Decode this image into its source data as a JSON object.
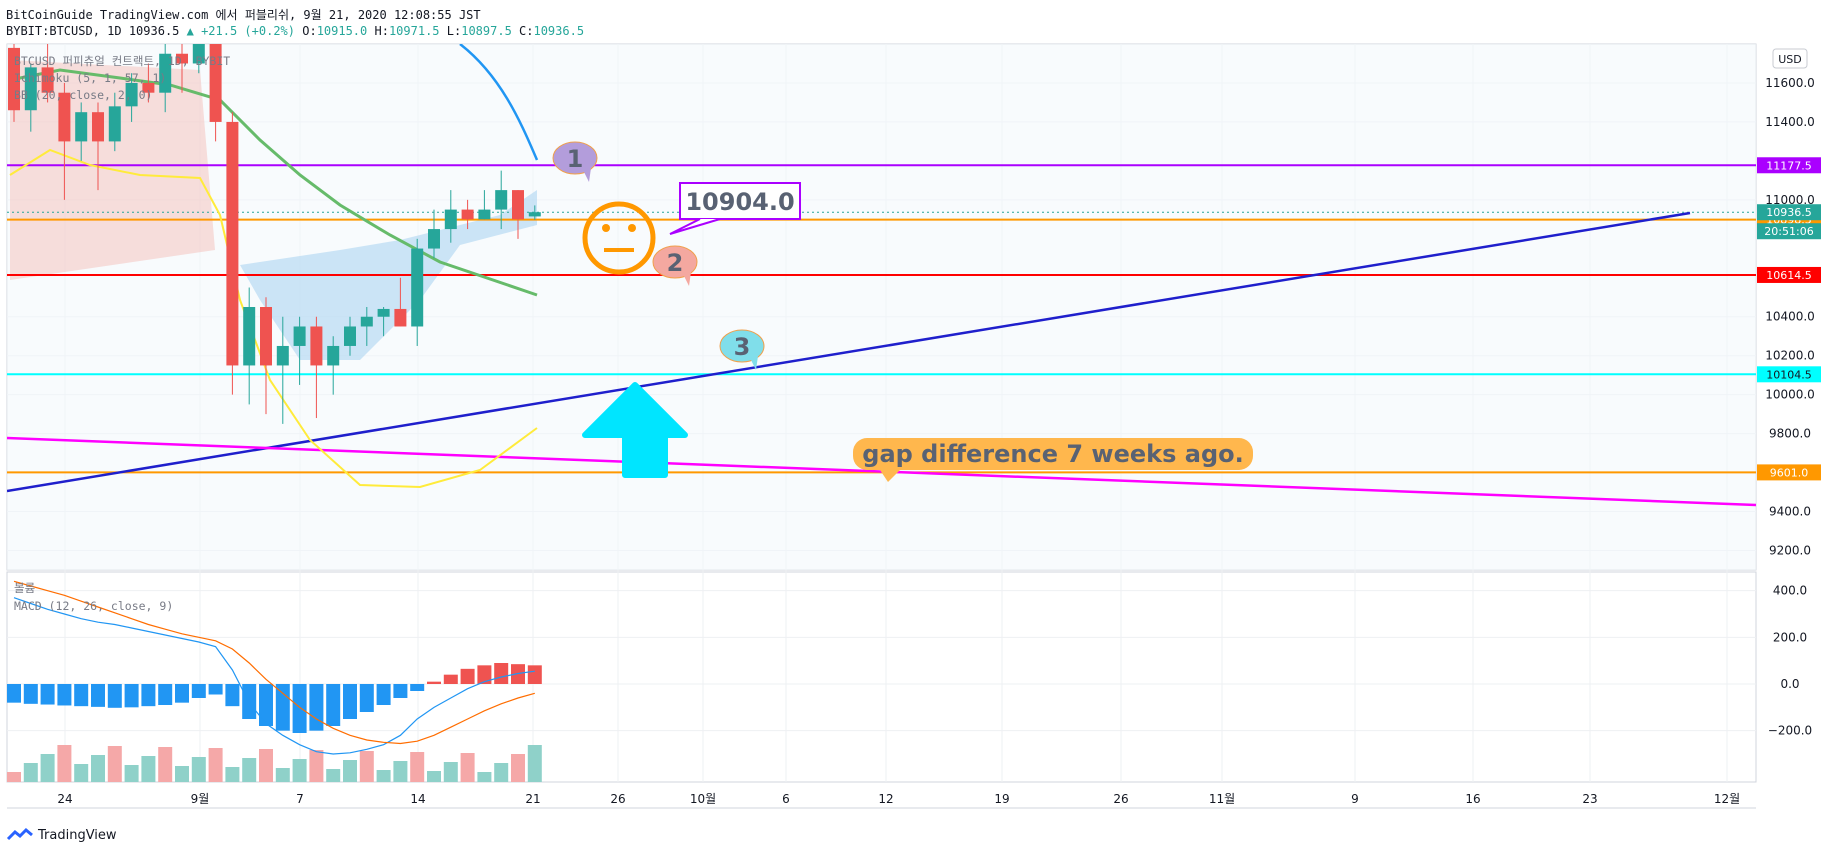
{
  "header": {
    "line1": "BitCoinGuide TradingView.com 에서 퍼블리쉬, 9월 21, 2020 12:08:55 JST",
    "symbol": "BYBIT:BTCUSD, 1D 10936.5",
    "change": "▲ +21.5 (+0.2%)",
    "o_label": "O:",
    "o": "10915.0",
    "h_label": "H:",
    "h": "10971.5",
    "l_label": "L:",
    "l": "10897.5",
    "c_label": "C:",
    "c": "10936.5"
  },
  "indicators": {
    "title": "BTCUSD 퍼피츄얼 컨트랙트, 1D, BYBIT",
    "ichimoku": "Ichimoku (5, 1, 57, 1)",
    "bb": "BB (20, close, 2, 0)",
    "volume": "볼륨",
    "macd": "MACD (12, 26, close, 9)"
  },
  "currency_button": "USD",
  "footer": {
    "brand": "TradingView"
  },
  "colors": {
    "up": "#26a69a",
    "down": "#ef5350",
    "purple_line": "#aa00ff",
    "orange_line": "#ff9800",
    "red_line": "#ff0000",
    "cyan_line": "#00ffff",
    "trend_blue": "#1f1fcc",
    "magenta": "#ff00ff"
  },
  "chart_data": {
    "type": "candlestick",
    "x_ticks": [
      "24",
      "9월",
      "7",
      "14",
      "21",
      "26",
      "10월",
      "6",
      "12",
      "19",
      "26",
      "11월",
      "9",
      "16",
      "23",
      "12월"
    ],
    "y_ticks": [
      9200,
      9400,
      9600,
      9800,
      10000,
      10200,
      10400,
      11000,
      11400,
      11600
    ],
    "y_tick_labels": [
      "9200.0",
      "9400.0",
      "9600.0",
      "9800.0",
      "10000.0",
      "10200.0",
      "10400.0",
      "11000.0",
      "11400.0",
      "11600.0"
    ],
    "ylim": [
      9100,
      11800
    ],
    "candles": [
      {
        "o": 11780,
        "h": 11900,
        "l": 11400,
        "c": 11460
      },
      {
        "o": 11460,
        "h": 11700,
        "l": 11350,
        "c": 11680
      },
      {
        "o": 11680,
        "h": 11800,
        "l": 11500,
        "c": 11550
      },
      {
        "o": 11550,
        "h": 11600,
        "l": 11000,
        "c": 11300
      },
      {
        "o": 11300,
        "h": 11500,
        "l": 11200,
        "c": 11450
      },
      {
        "o": 11450,
        "h": 11500,
        "l": 11050,
        "c": 11300
      },
      {
        "o": 11300,
        "h": 11550,
        "l": 11250,
        "c": 11480
      },
      {
        "o": 11480,
        "h": 11650,
        "l": 11400,
        "c": 11600
      },
      {
        "o": 11600,
        "h": 11700,
        "l": 11500,
        "c": 11550
      },
      {
        "o": 11550,
        "h": 11850,
        "l": 11450,
        "c": 11750
      },
      {
        "o": 11750,
        "h": 11800,
        "l": 11550,
        "c": 11700
      },
      {
        "o": 11700,
        "h": 12000,
        "l": 11650,
        "c": 11950
      },
      {
        "o": 11950,
        "h": 12050,
        "l": 11300,
        "c": 11400
      },
      {
        "o": 11400,
        "h": 11450,
        "l": 10000,
        "c": 10150
      },
      {
        "o": 10150,
        "h": 10550,
        "l": 9950,
        "c": 10450
      },
      {
        "o": 10450,
        "h": 10500,
        "l": 9900,
        "c": 10150
      },
      {
        "o": 10150,
        "h": 10400,
        "l": 9850,
        "c": 10250
      },
      {
        "o": 10250,
        "h": 10400,
        "l": 10050,
        "c": 10350
      },
      {
        "o": 10350,
        "h": 10400,
        "l": 9880,
        "c": 10150
      },
      {
        "o": 10150,
        "h": 10300,
        "l": 10000,
        "c": 10250
      },
      {
        "o": 10250,
        "h": 10400,
        "l": 10200,
        "c": 10350
      },
      {
        "o": 10350,
        "h": 10450,
        "l": 10250,
        "c": 10400
      },
      {
        "o": 10400,
        "h": 10450,
        "l": 10300,
        "c": 10440
      },
      {
        "o": 10440,
        "h": 10600,
        "l": 10350,
        "c": 10350
      },
      {
        "o": 10350,
        "h": 10800,
        "l": 10250,
        "c": 10750
      },
      {
        "o": 10750,
        "h": 10950,
        "l": 10700,
        "c": 10850
      },
      {
        "o": 10850,
        "h": 11050,
        "l": 10780,
        "c": 10950
      },
      {
        "o": 10950,
        "h": 11000,
        "l": 10850,
        "c": 10900
      },
      {
        "o": 10900,
        "h": 11050,
        "l": 10900,
        "c": 10950
      },
      {
        "o": 10950,
        "h": 11150,
        "l": 10850,
        "c": 11050
      },
      {
        "o": 11050,
        "h": 11050,
        "l": 10800,
        "c": 10900
      },
      {
        "o": 10915,
        "h": 10971.5,
        "l": 10897.5,
        "c": 10936.5
      }
    ],
    "horizontal_levels": [
      {
        "value": 11177.5,
        "label": "11177.5",
        "color": "#aa00ff"
      },
      {
        "value": 10898.5,
        "label": "10898.5",
        "color": "#ff9800"
      },
      {
        "value": 10614.5,
        "label": "10614.5",
        "color": "#ff0000"
      },
      {
        "value": 10104.5,
        "label": "10104.5",
        "color": "#00ffff"
      },
      {
        "value": 9601.0,
        "label": "9601.0",
        "color": "#ff9800"
      }
    ],
    "price_tags": [
      {
        "label": "10936.5",
        "color": "#26a69a"
      },
      {
        "label": "20:51:06",
        "color": "#26a69a"
      }
    ],
    "annotations": {
      "callout_price": "10904.0",
      "bubble1": "1",
      "bubble2": "2",
      "bubble3": "3",
      "gap_note": "gap difference 7 weeks ago."
    },
    "macd": {
      "y_ticks": [
        400,
        200,
        0,
        -200
      ],
      "y_tick_labels": [
        "400.0",
        "200.0",
        "0.0",
        "−200.0"
      ],
      "ylim": [
        -420,
        480
      ],
      "histogram": [
        -80,
        -85,
        -88,
        -92,
        -95,
        -98,
        -102,
        -100,
        -95,
        -90,
        -80,
        -60,
        -45,
        -95,
        -150,
        -180,
        -200,
        -210,
        -200,
        -180,
        -150,
        -120,
        -90,
        -60,
        -30,
        10,
        40,
        65,
        80,
        90,
        85,
        80
      ],
      "macd_line": [
        370,
        345,
        320,
        300,
        280,
        265,
        255,
        240,
        225,
        210,
        195,
        180,
        160,
        60,
        -80,
        -170,
        -220,
        -260,
        -290,
        -300,
        -295,
        -280,
        -260,
        -220,
        -150,
        -100,
        -60,
        -20,
        10,
        30,
        45,
        55
      ],
      "signal_line": [
        440,
        420,
        400,
        380,
        355,
        330,
        305,
        280,
        255,
        235,
        215,
        200,
        185,
        150,
        90,
        20,
        -40,
        -100,
        -150,
        -190,
        -220,
        -240,
        -250,
        -255,
        -245,
        -220,
        -185,
        -150,
        -115,
        -85,
        -60,
        -40
      ]
    }
  }
}
